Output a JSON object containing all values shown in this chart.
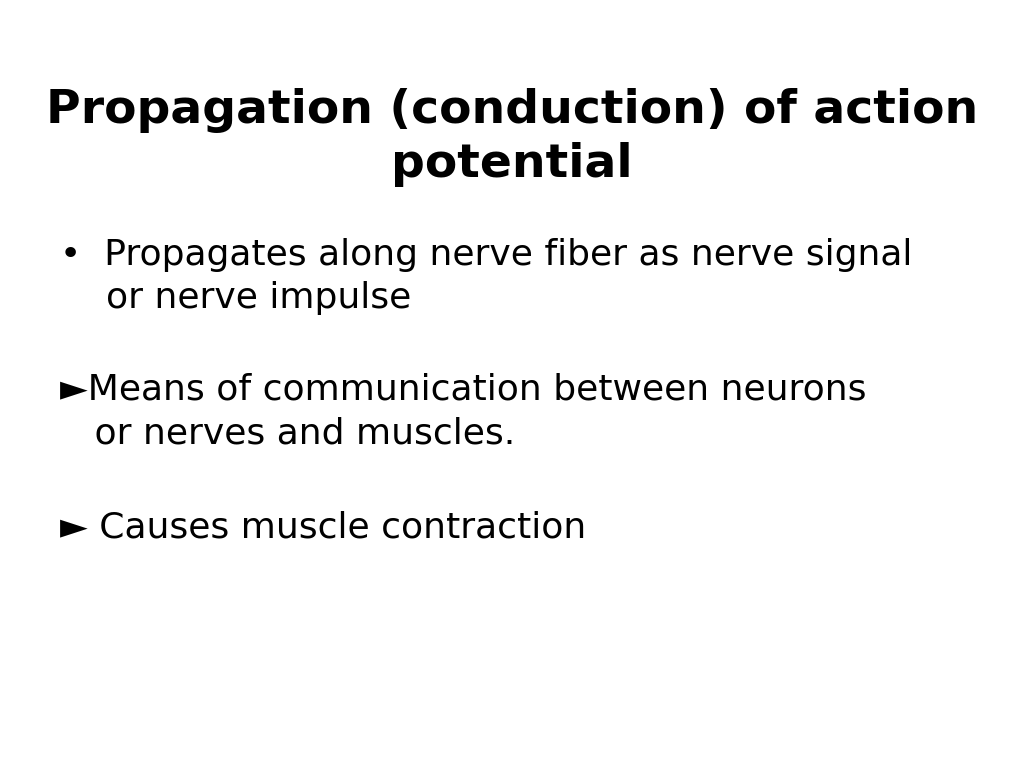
{
  "title_line1": "Propagation (conduction) of action",
  "title_line2": "potential",
  "background_color": "#ffffff",
  "text_color": "#000000",
  "title_fontsize": 34,
  "title_fontweight": "bold",
  "bullet_fontsize": 26,
  "bullet1_marker": "•",
  "bullet1_line1": "Propagates along nerve fiber as nerve signal",
  "bullet1_line2": "or nerve impulse",
  "bullet2_marker": "►",
  "bullet2_line1": "Means of communication between neurons",
  "bullet2_line2": "or nerves and muscles.",
  "bullet3_marker": "►",
  "bullet3_line1": " Causes muscle contraction"
}
